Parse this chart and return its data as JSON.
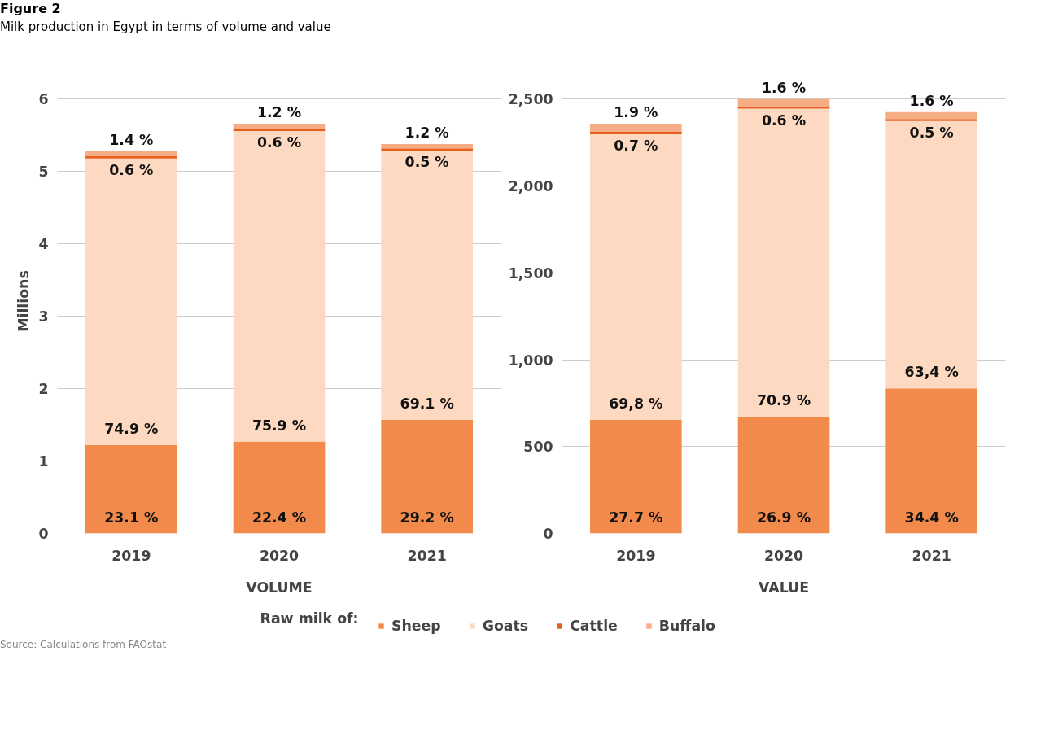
{
  "chart_data": [
    {
      "type": "bar",
      "stacked": true,
      "title": "Figure 2",
      "subtitle": "Milk production in Egypt in terms of volume and value",
      "ylabel": "Millions",
      "xlabel": "VOLUME",
      "legend_title": "Raw milk of:",
      "legend": "bottom",
      "grid": "y",
      "categories": [
        "2019",
        "2020",
        "2021"
      ],
      "ylim": [
        0,
        6
      ],
      "yticks": [
        0,
        1,
        2,
        3,
        4,
        5,
        6
      ],
      "series": [
        {
          "name": "Sheep",
          "color": "#f28a4b",
          "values": [
            1.22,
            1.27,
            1.57
          ]
        },
        {
          "name": "Goats",
          "color": "#fcd9c0",
          "values": [
            3.96,
            4.29,
            3.72
          ]
        },
        {
          "name": "Cattle",
          "color": "#e8601c",
          "values": [
            0.03,
            0.03,
            0.03
          ]
        },
        {
          "name": "Buffalo",
          "color": "#f6ad85",
          "values": [
            0.07,
            0.07,
            0.06
          ]
        }
      ],
      "annotations": [
        {
          "text": "23.1 %",
          "x": "2019",
          "y": 0
        },
        {
          "text": "22.4 %",
          "x": "2020",
          "y": 0
        },
        {
          "text": "29.2 %",
          "x": "2021",
          "y": 0
        },
        {
          "text": "74.9 %",
          "x": "2019",
          "y": 1.22
        },
        {
          "text": "75.9 %",
          "x": "2020",
          "y": 1.27
        },
        {
          "text": "69.1 %",
          "x": "2021",
          "y": 1.57
        },
        {
          "text": "0.6 %",
          "x": "2019",
          "y": 5.21
        },
        {
          "text": "0.6 %",
          "x": "2020",
          "y": 5.59
        },
        {
          "text": "0.5 %",
          "x": "2021",
          "y": 5.32
        },
        {
          "text": "1.4 %",
          "x": "2019",
          "y": 5.28
        },
        {
          "text": "1.2 %",
          "x": "2020",
          "y": 5.66
        },
        {
          "text": "1.2 %",
          "x": "2021",
          "y": 5.38
        },
        "Source: Calculations from FAOstat"
      ]
    },
    {
      "type": "bar",
      "stacked": true,
      "xlabel": "VALUE",
      "grid": "y",
      "categories": [
        "2019",
        "2020",
        "2021"
      ],
      "ylim": [
        0,
        2500
      ],
      "yticks": [
        0,
        500,
        {
          "value": 1000,
          "label": "1,000"
        },
        {
          "value": 1500,
          "label": "1,500"
        },
        {
          "value": 2000,
          "label": "2,000"
        },
        {
          "value": 2500,
          "label": "2,500"
        }
      ],
      "series": [
        {
          "color": "#f28a4b",
          "values": [
            653,
            673,
            835
          ]
        },
        {
          "color": "#fcd9c0",
          "values": [
            1645,
            1772,
            1539
          ]
        },
        {
          "color": "#e8601c",
          "values": [
            16,
            15,
            12
          ]
        },
        {
          "color": "#f6ad85",
          "values": [
            45,
            40,
            39
          ]
        }
      ],
      "annotations": [
        {
          "text": "27.7 %",
          "x": "2019",
          "y": 0
        },
        {
          "text": "26.9 %",
          "x": "2020",
          "y": 0
        },
        {
          "text": "34.4 %",
          "x": "2021",
          "y": 0
        },
        {
          "text": "69,8 %",
          "x": "2019",
          "y": 653
        },
        {
          "text": "70.9 %",
          "x": "2020",
          "y": 673
        },
        {
          "text": "63,4 %",
          "x": "2021",
          "y": 835
        },
        {
          "text": "0.7 %",
          "x": "2019",
          "y": 2314
        },
        {
          "text": "0.6 %",
          "x": "2020",
          "y": 2460
        },
        {
          "text": "0.5 %",
          "x": "2021",
          "y": 2386
        },
        {
          "text": "1.9 %",
          "x": "2019",
          "y": 2359
        },
        {
          "text": "1.6 %",
          "x": "2020",
          "y": 2500
        },
        {
          "text": "1.6 %",
          "x": "2021",
          "y": 2425
        }
      ]
    }
  ]
}
